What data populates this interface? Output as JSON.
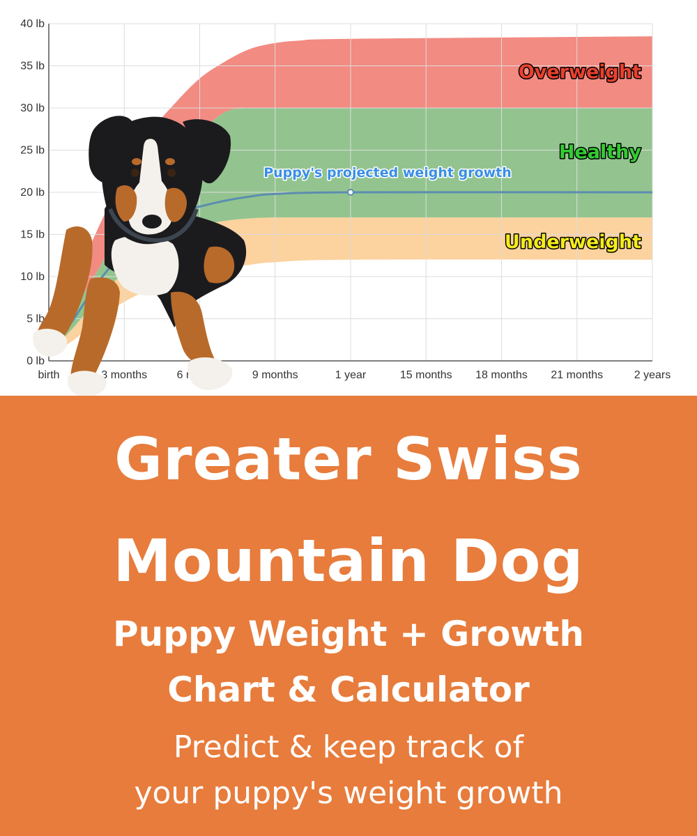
{
  "chart_data": {
    "type": "area",
    "ylabel_unit": "lb",
    "ylim": [
      0,
      40
    ],
    "y_ticks": [
      "0 lb",
      "5 lb",
      "10 lb",
      "15 lb",
      "20 lb",
      "25 lb",
      "30 lb",
      "35 lb",
      "40 lb"
    ],
    "x_ticks": [
      "birth",
      "3 months",
      "6 months",
      "9 months",
      "1 year",
      "15 months",
      "18 months",
      "21 months",
      "2 years"
    ],
    "xlim_months": [
      0,
      24
    ],
    "grid": true,
    "bands": [
      {
        "name": "Overweight",
        "color": "#f28b82",
        "lower": [
          [
            0,
            1
          ],
          [
            1,
            6
          ],
          [
            2,
            11
          ],
          [
            3,
            16
          ],
          [
            4,
            20
          ],
          [
            5,
            24
          ],
          [
            6,
            27
          ],
          [
            7,
            29.5
          ],
          [
            8,
            30
          ],
          [
            9,
            30
          ],
          [
            12,
            30
          ],
          [
            24,
            30
          ]
        ],
        "upper": [
          [
            0,
            1
          ],
          [
            1,
            9
          ],
          [
            2,
            16
          ],
          [
            3,
            22
          ],
          [
            4,
            27
          ],
          [
            5,
            30.5
          ],
          [
            6,
            33.5
          ],
          [
            7,
            35.5
          ],
          [
            8,
            37
          ],
          [
            9,
            37.7
          ],
          [
            10,
            38
          ],
          [
            12,
            38.2
          ],
          [
            24,
            38.5
          ]
        ]
      },
      {
        "name": "Healthy",
        "color": "#93c48f",
        "lower": [
          [
            0,
            0.8
          ],
          [
            1,
            4
          ],
          [
            2,
            7.5
          ],
          [
            3,
            10.5
          ],
          [
            4,
            13
          ],
          [
            5,
            14.8
          ],
          [
            6,
            16
          ],
          [
            7,
            16.6
          ],
          [
            8,
            16.9
          ],
          [
            9,
            17
          ],
          [
            12,
            17
          ],
          [
            24,
            17
          ]
        ],
        "upper": [
          [
            0,
            1
          ],
          [
            1,
            6
          ],
          [
            2,
            11
          ],
          [
            3,
            16
          ],
          [
            4,
            20
          ],
          [
            5,
            24
          ],
          [
            6,
            27
          ],
          [
            7,
            29.5
          ],
          [
            8,
            30
          ],
          [
            9,
            30
          ],
          [
            12,
            30
          ],
          [
            24,
            30
          ]
        ]
      },
      {
        "name": "Underweight",
        "color": "#fcd29f",
        "lower": [
          [
            0,
            0.5
          ],
          [
            1,
            2.5
          ],
          [
            2,
            5
          ],
          [
            3,
            7
          ],
          [
            4,
            8.5
          ],
          [
            5,
            9.7
          ],
          [
            6,
            10.5
          ],
          [
            7,
            11
          ],
          [
            8,
            11.4
          ],
          [
            9,
            11.7
          ],
          [
            12,
            12
          ],
          [
            24,
            12
          ]
        ],
        "upper": [
          [
            0,
            0.8
          ],
          [
            1,
            4
          ],
          [
            2,
            7.5
          ],
          [
            3,
            10.5
          ],
          [
            4,
            13
          ],
          [
            5,
            14.8
          ],
          [
            6,
            16
          ],
          [
            7,
            16.6
          ],
          [
            8,
            16.9
          ],
          [
            9,
            17
          ],
          [
            12,
            17
          ],
          [
            24,
            17
          ]
        ]
      }
    ],
    "series": [
      {
        "name": "Puppy's projected weight growth",
        "color": "#5b8db0",
        "points": [
          [
            0,
            0.8
          ],
          [
            1,
            5
          ],
          [
            2,
            9.5
          ],
          [
            3,
            13
          ],
          [
            4,
            16
          ],
          [
            5,
            17.5
          ],
          [
            6,
            18.3
          ],
          [
            7,
            19
          ],
          [
            8,
            19.5
          ],
          [
            9,
            19.8
          ],
          [
            12,
            20
          ],
          [
            24,
            20
          ]
        ]
      }
    ],
    "marker": {
      "x": 12,
      "y": 20
    },
    "annotations": {
      "overweight": "Overweight",
      "healthy": "Healthy",
      "underweight": "Underweight",
      "projection": "Puppy's projected weight growth"
    },
    "annotation_colors": {
      "overweight": "#e8412e",
      "healthy": "#33cc33",
      "underweight": "#f4ec1c",
      "projection": "#3a8ee6"
    }
  },
  "banner": {
    "background": "#e77c3c",
    "breed_line1": "Greater Swiss",
    "breed_line2": "Mountain Dog",
    "subtitle_line1": "Puppy Weight + Growth",
    "subtitle_line2": "Chart & Calculator",
    "tagline_line1": "Predict & keep track of",
    "tagline_line2": "your puppy's weight growth"
  },
  "photo": {
    "subject": "puppy-photo",
    "colors": {
      "black": "#1b1b1e",
      "tan": "#b86a2a",
      "white": "#f4f1ec"
    }
  }
}
